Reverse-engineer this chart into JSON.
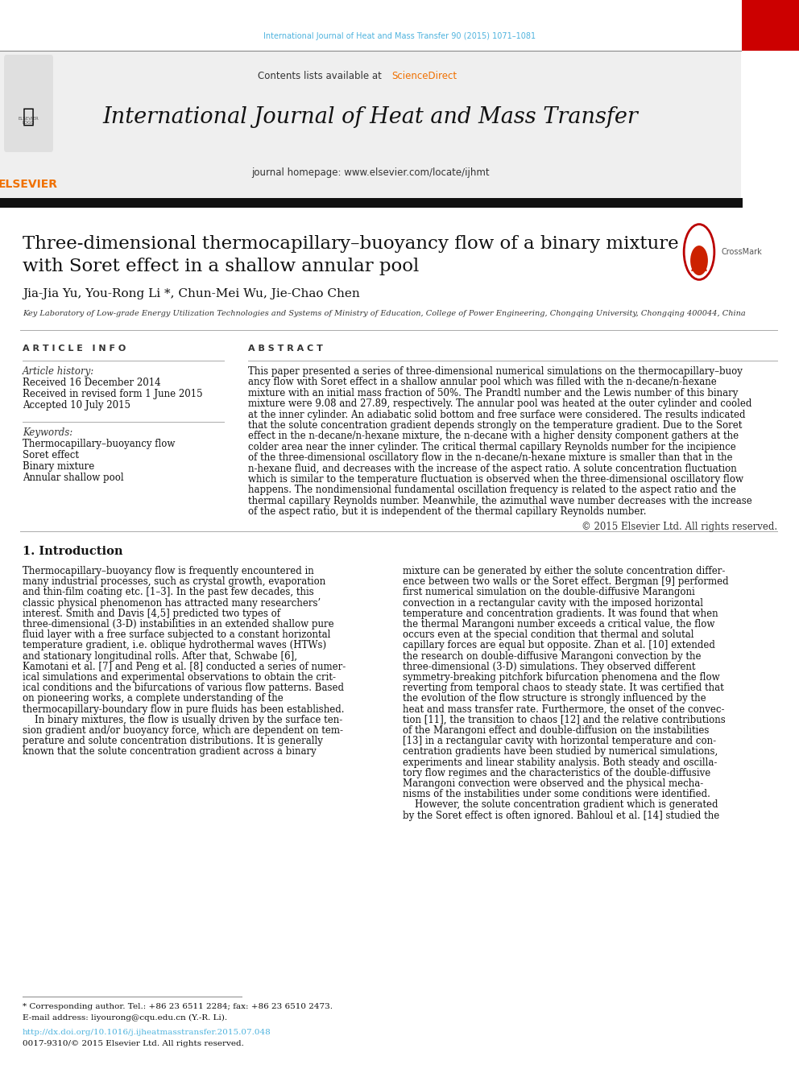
{
  "page_width": 9.92,
  "page_height": 13.23,
  "bg_color": "#ffffff",
  "header_citation": "International Journal of Heat and Mass Transfer 90 (2015) 1071–1081",
  "header_citation_color": "#4eb3de",
  "journal_name": "International Journal of Heat and Mass Transfer",
  "journal_homepage": "journal homepage: www.elsevier.com/locate/ijhmt",
  "contents_text": "Contents lists available at ",
  "sciencedirect_text": "ScienceDirect",
  "sciencedirect_color": "#f07000",
  "header_bg_color": "#efefef",
  "elsevier_color": "#f07000",
  "paper_title": "Three-dimensional thermocapillary–buoyancy flow of a binary mixture\nwith Soret effect in a shallow annular pool",
  "authors": "Jia-Jia Yu, You-Rong Li *, Chun-Mei Wu, Jie-Chao Chen",
  "affiliation": "Key Laboratory of Low-grade Energy Utilization Technologies and Systems of Ministry of Education, College of Power Engineering, Chongqing University, Chongqing 400044, China",
  "article_info_header": "A R T I C L E   I N F O",
  "abstract_header": "A B S T R A C T",
  "article_history_label": "Article history:",
  "received_1": "Received 16 December 2014",
  "received_2": "Received in revised form 1 June 2015",
  "accepted": "Accepted 10 July 2015",
  "keywords_label": "Keywords:",
  "keyword_1": "Thermocapillary–buoyancy flow",
  "keyword_2": "Soret effect",
  "keyword_3": "Binary mixture",
  "keyword_4": "Annular shallow pool",
  "copyright_text": "© 2015 Elsevier Ltd. All rights reserved.",
  "intro_header": "1. Introduction",
  "footnote_star": "* Corresponding author. Tel.: +86 23 6511 2284; fax: +86 23 6510 2473.",
  "footnote_email": "E-mail address: liyourong@cqu.edu.cn (Y.-R. Li).",
  "footnote_doi": "http://dx.doi.org/10.1016/j.ijheatmasstransfer.2015.07.048",
  "footnote_rights": "0017-9310/© 2015 Elsevier Ltd. All rights reserved.",
  "link_color": "#4eb3de",
  "abstract_lines": [
    "This paper presented a series of three-dimensional numerical simulations on the thermocapillary–buoy",
    "ancy flow with Soret effect in a shallow annular pool which was filled with the n-decane/n-hexane",
    "mixture with an initial mass fraction of 50%. The Prandtl number and the Lewis number of this binary",
    "mixture were 9.08 and 27.89, respectively. The annular pool was heated at the outer cylinder and cooled",
    "at the inner cylinder. An adiabatic solid bottom and free surface were considered. The results indicated",
    "that the solute concentration gradient depends strongly on the temperature gradient. Due to the Soret",
    "effect in the n-decane/n-hexane mixture, the n-decane with a higher density component gathers at the",
    "colder area near the inner cylinder. The critical thermal capillary Reynolds number for the incipience",
    "of the three-dimensional oscillatory flow in the n-decane/n-hexane mixture is smaller than that in the",
    "n-hexane fluid, and decreases with the increase of the aspect ratio. A solute concentration fluctuation",
    "which is similar to the temperature fluctuation is observed when the three-dimensional oscillatory flow",
    "happens. The nondimensional fundamental oscillation frequency is related to the aspect ratio and the",
    "thermal capillary Reynolds number. Meanwhile, the azimuthal wave number decreases with the increase",
    "of the aspect ratio, but it is independent of the thermal capillary Reynolds number."
  ],
  "intro_col1_lines": [
    "Thermocapillary–buoyancy flow is frequently encountered in",
    "many industrial processes, such as crystal growth, evaporation",
    "and thin-film coating etc. [1–3]. In the past few decades, this",
    "classic physical phenomenon has attracted many researchers’",
    "interest. Smith and Davis [4,5] predicted two types of",
    "three-dimensional (3-D) instabilities in an extended shallow pure",
    "fluid layer with a free surface subjected to a constant horizontal",
    "temperature gradient, i.e. oblique hydrothermal waves (HTWs)",
    "and stationary longitudinal rolls. After that, Schwabe [6],",
    "Kamotani et al. [7] and Peng et al. [8] conducted a series of numer-",
    "ical simulations and experimental observations to obtain the crit-",
    "ical conditions and the bifurcations of various flow patterns. Based",
    "on pioneering works, a complete understanding of the",
    "thermocapillary-boundary flow in pure fluids has been established.",
    "    In binary mixtures, the flow is usually driven by the surface ten-",
    "sion gradient and/or buoyancy force, which are dependent on tem-",
    "perature and solute concentration distributions. It is generally",
    "known that the solute concentration gradient across a binary"
  ],
  "intro_col2_lines": [
    "mixture can be generated by either the solute concentration differ-",
    "ence between two walls or the Soret effect. Bergman [9] performed",
    "first numerical simulation on the double-diffusive Marangoni",
    "convection in a rectangular cavity with the imposed horizontal",
    "temperature and concentration gradients. It was found that when",
    "the thermal Marangoni number exceeds a critical value, the flow",
    "occurs even at the special condition that thermal and solutal",
    "capillary forces are equal but opposite. Zhan et al. [10] extended",
    "the research on double-diffusive Marangoni convection by the",
    "three-dimensional (3-D) simulations. They observed different",
    "symmetry-breaking pitchfork bifurcation phenomena and the flow",
    "reverting from temporal chaos to steady state. It was certified that",
    "the evolution of the flow structure is strongly influenced by the",
    "heat and mass transfer rate. Furthermore, the onset of the convec-",
    "tion [11], the transition to chaos [12] and the relative contributions",
    "of the Marangoni effect and double-diffusion on the instabilities",
    "[13] in a rectangular cavity with horizontal temperature and con-",
    "centration gradients have been studied by numerical simulations,",
    "experiments and linear stability analysis. Both steady and oscilla-",
    "tory flow regimes and the characteristics of the double-diffusive",
    "Marangoni convection were observed and the physical mecha-",
    "nisms of the instabilities under some conditions were identified.",
    "    However, the solute concentration gradient which is generated",
    "by the Soret effect is often ignored. Bahloul et al. [14] studied the"
  ]
}
